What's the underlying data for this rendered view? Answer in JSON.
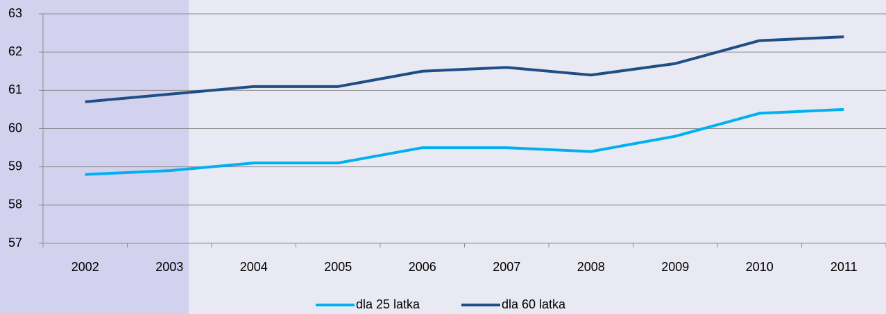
{
  "chart_data": {
    "type": "line",
    "categories": [
      "2002",
      "2003",
      "2004",
      "2005",
      "2006",
      "2007",
      "2008",
      "2009",
      "2010",
      "2011"
    ],
    "series": [
      {
        "name": "dla 25 latka",
        "color": "#00b0f0",
        "values": [
          58.8,
          58.9,
          59.1,
          59.1,
          59.5,
          59.5,
          59.4,
          59.8,
          60.4,
          60.5
        ]
      },
      {
        "name": "dla 60 latka",
        "color": "#1f4e86",
        "values": [
          60.7,
          60.9,
          61.1,
          61.1,
          61.5,
          61.6,
          61.4,
          61.7,
          62.3,
          62.4
        ]
      }
    ],
    "ylim": [
      57,
      63
    ],
    "yticks": [
      57,
      58,
      59,
      60,
      61,
      62,
      63
    ],
    "grid": true,
    "legend": "bottom"
  }
}
